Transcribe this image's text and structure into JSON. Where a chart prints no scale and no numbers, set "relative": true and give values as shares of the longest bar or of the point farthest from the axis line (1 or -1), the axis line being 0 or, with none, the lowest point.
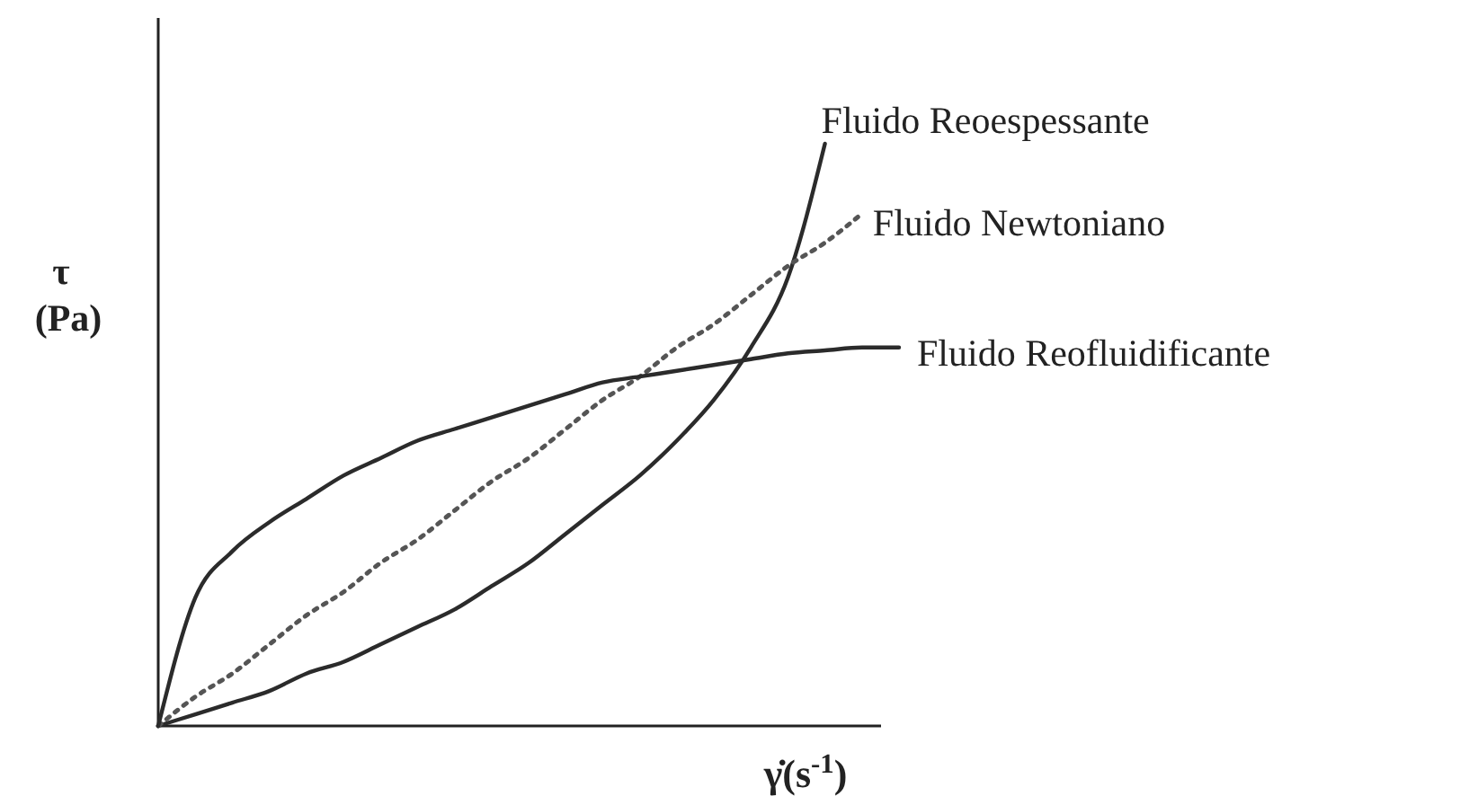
{
  "chart_data": {
    "type": "line",
    "relative": true,
    "xlabel": "γ̇(s$^{-1}$)",
    "ylabel": "τ (Pa)",
    "categories": [
      null,
      null,
      null,
      null,
      null,
      null,
      null,
      null,
      null,
      null,
      null,
      null,
      null,
      null,
      null,
      null,
      null,
      null,
      null,
      null,
      null
    ],
    "series": [
      {
        "name": "Fluido Reoespessante",
        "color": "#2b2b2b",
        "line_style": "solid",
        "values": [
          0,
          0.02,
          0.04,
          0.06,
          0.09,
          0.11,
          0.14,
          0.17,
          0.2,
          0.24,
          0.28,
          0.33,
          0.38,
          0.43,
          0.49,
          0.56,
          0.65,
          0.77,
          1,
          null,
          null
        ]
      },
      {
        "name": "Fluido Newtoniano",
        "color": "#555555",
        "line_style": "dotted",
        "values": [
          0,
          0.05,
          0.09,
          0.14,
          0.19,
          0.23,
          0.28,
          0.32,
          0.37,
          0.42,
          0.46,
          0.51,
          0.56,
          0.6,
          0.65,
          0.69,
          0.74,
          0.79,
          0.83,
          0.88,
          null
        ]
      },
      {
        "name": "Fluido Reofluidificante",
        "color": "#2b2b2b",
        "line_style": "solid",
        "values": [
          0,
          0.22,
          0.3,
          0.35,
          0.39,
          0.43,
          0.46,
          0.49,
          0.51,
          0.53,
          0.55,
          0.57,
          0.59,
          0.6,
          0.61,
          0.62,
          0.63,
          0.64,
          0.645,
          0.65,
          0.65
        ]
      }
    ]
  }
}
